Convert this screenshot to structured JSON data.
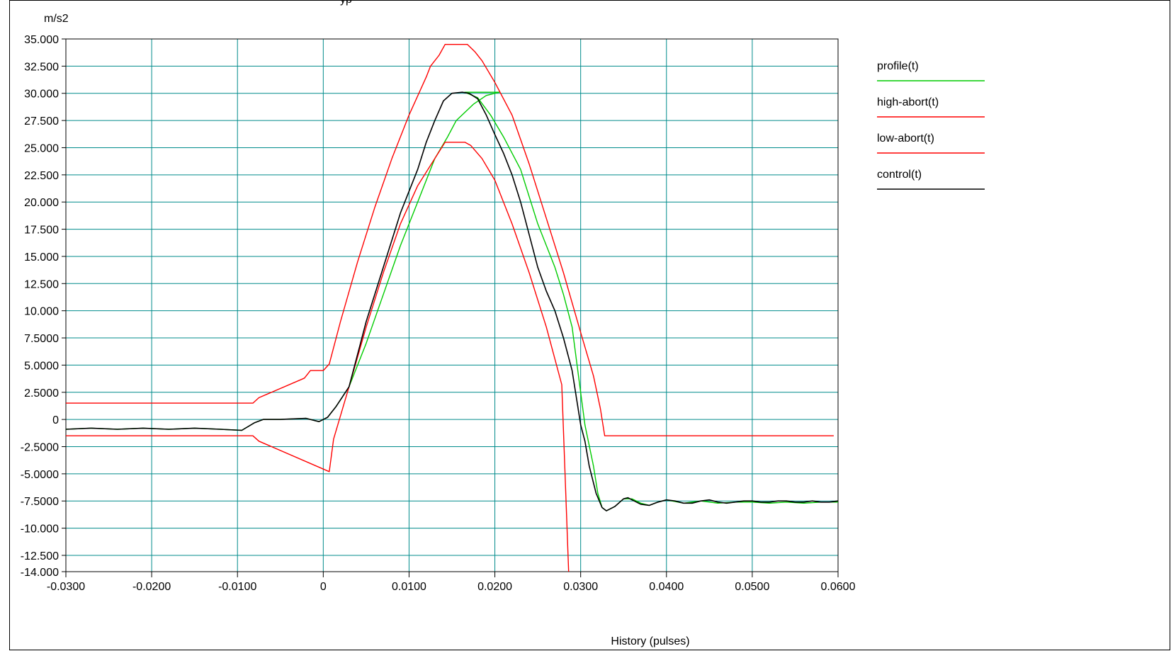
{
  "window": {
    "title_fragment": "yp"
  },
  "chart_data": {
    "type": "line",
    "title": "",
    "xlabel": "History (pulses)",
    "ylabel": "m/s2",
    "xlim": [
      -0.03,
      0.06
    ],
    "ylim": [
      -14.0,
      35.0
    ],
    "grid": true,
    "legend_position": "right",
    "x_ticks": [
      -0.03,
      -0.02,
      -0.01,
      0,
      0.01,
      0.02,
      0.03,
      0.04,
      0.05,
      0.06
    ],
    "x_tick_labels": [
      "-0.0300",
      "-0.0200",
      "-0.0100",
      "0",
      "0.0100",
      "0.0200",
      "0.0300",
      "0.0400",
      "0.0500",
      "0.0600"
    ],
    "y_ticks": [
      35,
      32.5,
      30,
      27.5,
      25,
      22.5,
      20,
      17.5,
      15,
      12.5,
      10,
      7.5,
      5,
      2.5,
      0,
      -2.5,
      -5,
      -7.5,
      -10,
      -12.5,
      -14
    ],
    "y_tick_labels": [
      "35.000",
      "32.500",
      "30.000",
      "27.500",
      "25.000",
      "22.500",
      "20.000",
      "17.500",
      "15.000",
      "12.500",
      "10.000",
      "7.5000",
      "5.0000",
      "2.5000",
      "0",
      "-2.5000",
      "-5.0000",
      "-7.5000",
      "-10.000",
      "-12.500",
      "-14.000"
    ],
    "series": [
      {
        "name": "profile(t)",
        "color": "#00cc00",
        "points": [
          [
            -0.03,
            -0.9
          ],
          [
            -0.027,
            -0.8
          ],
          [
            -0.024,
            -0.9
          ],
          [
            -0.021,
            -0.8
          ],
          [
            -0.018,
            -0.9
          ],
          [
            -0.015,
            -0.8
          ],
          [
            -0.012,
            -0.9
          ],
          [
            -0.0095,
            -1.0
          ],
          [
            -0.008,
            -0.3
          ],
          [
            -0.007,
            0.0
          ],
          [
            -0.005,
            0.0
          ],
          [
            -0.002,
            0.1
          ],
          [
            -0.0005,
            -0.2
          ],
          [
            0.0005,
            0.2
          ],
          [
            0.0015,
            1.2
          ],
          [
            0.003,
            3.0
          ],
          [
            0.005,
            7.0
          ],
          [
            0.007,
            11.5
          ],
          [
            0.009,
            16.0
          ],
          [
            0.011,
            20.0
          ],
          [
            0.013,
            24.0
          ],
          [
            0.0145,
            26.0
          ],
          [
            0.0155,
            27.5
          ],
          [
            0.0175,
            29.0
          ],
          [
            0.019,
            29.8
          ],
          [
            0.0205,
            30.1
          ],
          [
            0.0165,
            30.1
          ],
          [
            0.018,
            29.6
          ],
          [
            0.0195,
            28.0
          ],
          [
            0.021,
            26.0
          ],
          [
            0.023,
            23.0
          ],
          [
            0.025,
            18.0
          ],
          [
            0.027,
            14.0
          ],
          [
            0.028,
            11.5
          ],
          [
            0.029,
            8.5
          ],
          [
            0.0295,
            5.5
          ],
          [
            0.0305,
            -0.5
          ],
          [
            0.0315,
            -4.3
          ],
          [
            0.032,
            -6.8
          ],
          [
            0.0325,
            -8.1
          ],
          [
            0.033,
            -8.4
          ],
          [
            0.034,
            -8.0
          ],
          [
            0.035,
            -7.3
          ],
          [
            0.036,
            -7.3
          ],
          [
            0.037,
            -7.7
          ],
          [
            0.038,
            -7.9
          ],
          [
            0.039,
            -7.6
          ],
          [
            0.04,
            -7.4
          ],
          [
            0.042,
            -7.7
          ],
          [
            0.044,
            -7.5
          ],
          [
            0.046,
            -7.7
          ],
          [
            0.048,
            -7.6
          ],
          [
            0.05,
            -7.6
          ],
          [
            0.052,
            -7.7
          ],
          [
            0.054,
            -7.6
          ],
          [
            0.056,
            -7.7
          ],
          [
            0.058,
            -7.6
          ],
          [
            0.06,
            -7.6
          ]
        ]
      },
      {
        "name": "high-abort(t)",
        "color": "#ff0000",
        "points": [
          [
            -0.03,
            1.5
          ],
          [
            -0.0082,
            1.5
          ],
          [
            -0.0075,
            2.0
          ],
          [
            -0.0022,
            3.8
          ],
          [
            -0.0015,
            4.5
          ],
          [
            0.0,
            4.5
          ],
          [
            0.0007,
            5.1
          ],
          [
            0.002,
            9.0
          ],
          [
            0.004,
            14.5
          ],
          [
            0.006,
            19.5
          ],
          [
            0.008,
            24.0
          ],
          [
            0.01,
            28.0
          ],
          [
            0.012,
            31.5
          ],
          [
            0.0125,
            32.5
          ],
          [
            0.0135,
            33.5
          ],
          [
            0.0142,
            34.5
          ],
          [
            0.0168,
            34.5
          ],
          [
            0.0177,
            33.8
          ],
          [
            0.0185,
            33.0
          ],
          [
            0.02,
            31.0
          ],
          [
            0.022,
            28.0
          ],
          [
            0.024,
            23.5
          ],
          [
            0.026,
            18.5
          ],
          [
            0.028,
            13.5
          ],
          [
            0.03,
            8.0
          ],
          [
            0.0315,
            4.0
          ],
          [
            0.0323,
            1.0
          ],
          [
            0.0328,
            -1.5
          ],
          [
            0.0595,
            -1.5
          ]
        ]
      },
      {
        "name": "low-abort(t)",
        "color": "#ff0000",
        "points": [
          [
            -0.03,
            -1.5
          ],
          [
            -0.0082,
            -1.5
          ],
          [
            -0.0075,
            -2.0
          ],
          [
            0.0007,
            -4.8
          ],
          [
            0.0012,
            -1.8
          ],
          [
            0.003,
            3.0
          ],
          [
            0.005,
            8.5
          ],
          [
            0.007,
            13.5
          ],
          [
            0.009,
            18.0
          ],
          [
            0.011,
            21.5
          ],
          [
            0.013,
            24.0
          ],
          [
            0.0142,
            25.5
          ],
          [
            0.0165,
            25.5
          ],
          [
            0.0172,
            25.2
          ],
          [
            0.0185,
            24.0
          ],
          [
            0.02,
            22.0
          ],
          [
            0.022,
            18.0
          ],
          [
            0.024,
            13.5
          ],
          [
            0.026,
            8.5
          ],
          [
            0.0278,
            3.2
          ],
          [
            0.0286,
            -14.0
          ]
        ]
      },
      {
        "name": "control(t)",
        "color": "#000000",
        "points": [
          [
            -0.03,
            -0.9
          ],
          [
            -0.027,
            -0.8
          ],
          [
            -0.024,
            -0.9
          ],
          [
            -0.021,
            -0.8
          ],
          [
            -0.018,
            -0.9
          ],
          [
            -0.015,
            -0.8
          ],
          [
            -0.012,
            -0.9
          ],
          [
            -0.0095,
            -1.0
          ],
          [
            -0.008,
            -0.3
          ],
          [
            -0.007,
            0.0
          ],
          [
            -0.005,
            0.0
          ],
          [
            -0.002,
            0.1
          ],
          [
            -0.0005,
            -0.2
          ],
          [
            0.0005,
            0.2
          ],
          [
            0.0015,
            1.2
          ],
          [
            0.003,
            3.0
          ],
          [
            0.004,
            6.0
          ],
          [
            0.005,
            9.0
          ],
          [
            0.007,
            14.0
          ],
          [
            0.009,
            19.0
          ],
          [
            0.011,
            23.0
          ],
          [
            0.012,
            25.5
          ],
          [
            0.013,
            27.5
          ],
          [
            0.014,
            29.3
          ],
          [
            0.015,
            30.0
          ],
          [
            0.0162,
            30.1
          ],
          [
            0.017,
            30.0
          ],
          [
            0.018,
            29.5
          ],
          [
            0.019,
            28.0
          ],
          [
            0.02,
            26.2
          ],
          [
            0.021,
            24.5
          ],
          [
            0.022,
            22.5
          ],
          [
            0.023,
            20.0
          ],
          [
            0.024,
            17.0
          ],
          [
            0.025,
            14.0
          ],
          [
            0.026,
            11.8
          ],
          [
            0.027,
            10.0
          ],
          [
            0.028,
            7.5
          ],
          [
            0.029,
            4.5
          ],
          [
            0.03,
            -0.5
          ],
          [
            0.0305,
            -2.0
          ],
          [
            0.031,
            -4.3
          ],
          [
            0.0318,
            -6.8
          ],
          [
            0.0325,
            -8.1
          ],
          [
            0.033,
            -8.4
          ],
          [
            0.034,
            -8.0
          ],
          [
            0.035,
            -7.3
          ],
          [
            0.0355,
            -7.2
          ],
          [
            0.036,
            -7.4
          ],
          [
            0.037,
            -7.8
          ],
          [
            0.038,
            -7.9
          ],
          [
            0.039,
            -7.6
          ],
          [
            0.04,
            -7.4
          ],
          [
            0.041,
            -7.5
          ],
          [
            0.042,
            -7.7
          ],
          [
            0.043,
            -7.7
          ],
          [
            0.044,
            -7.5
          ],
          [
            0.045,
            -7.4
          ],
          [
            0.046,
            -7.6
          ],
          [
            0.047,
            -7.7
          ],
          [
            0.048,
            -7.6
          ],
          [
            0.049,
            -7.5
          ],
          [
            0.05,
            -7.5
          ],
          [
            0.051,
            -7.6
          ],
          [
            0.052,
            -7.6
          ],
          [
            0.053,
            -7.5
          ],
          [
            0.054,
            -7.5
          ],
          [
            0.055,
            -7.6
          ],
          [
            0.056,
            -7.6
          ],
          [
            0.057,
            -7.5
          ],
          [
            0.058,
            -7.6
          ],
          [
            0.059,
            -7.6
          ],
          [
            0.06,
            -7.5
          ]
        ]
      }
    ]
  }
}
